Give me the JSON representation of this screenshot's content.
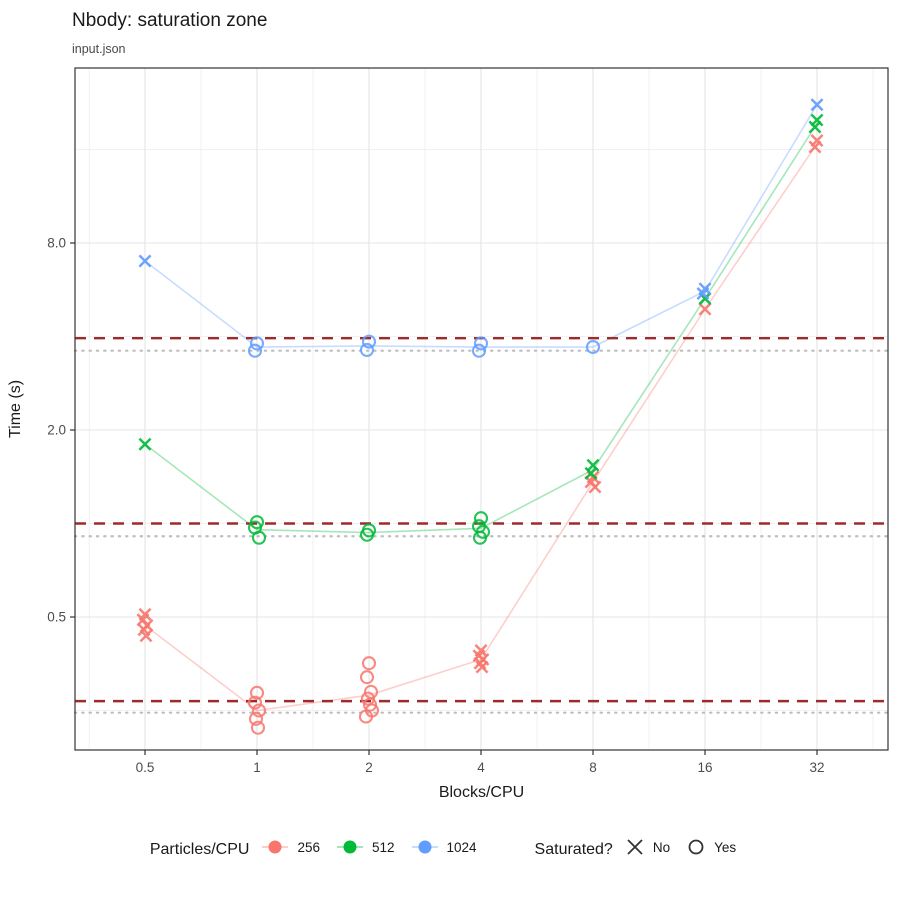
{
  "title": "Nbody: saturation zone",
  "subtitle": "input.json",
  "axes": {
    "x_label": "Blocks/CPU",
    "y_label": "Time (s)",
    "x_tick_labels": [
      "0.5",
      "1",
      "2",
      "4",
      "8",
      "16",
      "32"
    ],
    "y_tick_labels": [
      "8.0",
      "2.0",
      "0.5"
    ]
  },
  "legend": {
    "color_title": "Particles/CPU",
    "color_entries": [
      {
        "label": "256",
        "color": "#F8766D"
      },
      {
        "label": "512",
        "color": "#00BA38"
      },
      {
        "label": "1024",
        "color": "#619CFF"
      }
    ],
    "shape_title": "Saturated?",
    "shape_entries": [
      {
        "label": "No",
        "shape": "x"
      },
      {
        "label": "Yes",
        "shape": "circle"
      }
    ]
  },
  "colors": {
    "series_256": "#F8766D",
    "series_512": "#00BA38",
    "series_1024": "#619CFF",
    "dashed_line": "#9E2B2B",
    "dotted_line": "#BDBDBD",
    "grid_major": "#E4E4E4",
    "grid_minor": "#F1F1F1",
    "panel_border": "#333333",
    "tick_text": "#4d4d4d"
  },
  "chart_data": {
    "type": "scatter",
    "title": "Nbody: saturation zone",
    "subtitle": "input.json",
    "xlabel": "Blocks/CPU",
    "ylabel": "Time (s)",
    "x_scale": "log2",
    "y_scale": "log2",
    "x_ticks": [
      0.5,
      1,
      2,
      4,
      8,
      16,
      32
    ],
    "y_ticks": [
      8.0,
      2.0,
      0.5
    ],
    "xlim": [
      0.32,
      48
    ],
    "ylim": [
      0.18,
      29
    ],
    "grid": true,
    "legend_position": "bottom",
    "shape_encoding": {
      "x_marker": "not saturated (No)",
      "circle_marker": "saturated (Yes)"
    },
    "series": [
      {
        "name": "256",
        "color": "#F8766D",
        "points": [
          {
            "x": 0.5,
            "values": [
              0.51,
              0.49,
              0.47,
              0.455,
              0.435
            ],
            "saturated": false
          },
          {
            "x": 1,
            "values": [
              0.285,
              0.265,
              0.25,
              0.235,
              0.22
            ],
            "saturated": true
          },
          {
            "x": 2,
            "values": [
              0.355,
              0.32,
              0.287,
              0.273,
              0.261,
              0.25,
              0.239
            ],
            "saturated": true
          },
          {
            "x": 4,
            "values": [
              0.39,
              0.375,
              0.365,
              0.355,
              0.345
            ],
            "saturated": false
          },
          {
            "x": 8,
            "values": [
              1.41,
              1.36,
              1.31
            ],
            "saturated": false
          },
          {
            "x": 16,
            "values": [
              4.9
            ],
            "saturated": false
          },
          {
            "x": 32,
            "values": [
              17.1,
              16.3
            ],
            "saturated": false
          }
        ],
        "trend": [
          0.47,
          0.25,
          0.28,
          0.365,
          1.36,
          4.9,
          16.7
        ]
      },
      {
        "name": "512",
        "color": "#00BA38",
        "points": [
          {
            "x": 0.5,
            "values": [
              1.8
            ],
            "saturated": false
          },
          {
            "x": 1,
            "values": [
              1.01,
              0.97,
              0.9
            ],
            "saturated": true
          },
          {
            "x": 2,
            "values": [
              0.95,
              0.92
            ],
            "saturated": true
          },
          {
            "x": 4,
            "values": [
              1.04,
              0.98,
              0.94,
              0.9
            ],
            "saturated": true
          },
          {
            "x": 8,
            "values": [
              1.54,
              1.45
            ],
            "saturated": false
          },
          {
            "x": 16,
            "values": [
              5.3
            ],
            "saturated": false
          },
          {
            "x": 32,
            "values": [
              19.9,
              18.9
            ],
            "saturated": false
          }
        ],
        "trend": [
          1.8,
          0.955,
          0.935,
          0.965,
          1.49,
          5.3,
          19.4
        ]
      },
      {
        "name": "1024",
        "color": "#619CFF",
        "points": [
          {
            "x": 0.5,
            "values": [
              7.0
            ],
            "saturated": false
          },
          {
            "x": 1,
            "values": [
              3.8,
              3.6
            ],
            "saturated": true
          },
          {
            "x": 2,
            "values": [
              3.85,
              3.62
            ],
            "saturated": true
          },
          {
            "x": 4,
            "values": [
              3.8,
              3.6
            ],
            "saturated": true
          },
          {
            "x": 8,
            "values": [
              3.7
            ],
            "saturated": true
          },
          {
            "x": 16,
            "values": [
              5.7,
              5.5
            ],
            "saturated": false
          },
          {
            "x": 32,
            "values": [
              22.3
            ],
            "saturated": false
          }
        ],
        "trend": [
          7.0,
          3.7,
          3.73,
          3.7,
          3.7,
          5.6,
          22.3
        ]
      }
    ],
    "hlines": {
      "dashed": {
        "style": "dashed",
        "color": "#9E2B2B",
        "values": [
          3.95,
          1.0,
          0.268
        ]
      },
      "dotted": {
        "style": "dotted",
        "color": "#BDBDBD",
        "values": [
          3.6,
          0.91,
          0.246
        ]
      }
    }
  }
}
